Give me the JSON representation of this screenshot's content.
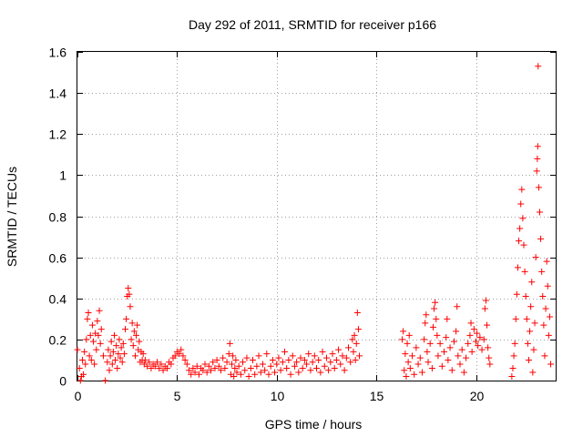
{
  "chart_data": {
    "type": "scatter",
    "title": "Day 292 of 2011, SRMTID for receiver p166",
    "xlabel": "GPS time / hours",
    "ylabel": "SRMTID / TECUs",
    "xlim": [
      0,
      24
    ],
    "ylim": [
      0,
      1.6
    ],
    "xticks": [
      0,
      5,
      10,
      15,
      20
    ],
    "xtick_labels": [
      "0",
      "5",
      "10",
      "15",
      "20"
    ],
    "yticks": [
      0,
      0.2,
      0.4,
      0.6,
      0.8,
      1,
      1.2,
      1.4,
      1.6
    ],
    "ytick_labels": [
      "0",
      "0.2",
      "0.4",
      "0.6",
      "0.8",
      "1",
      "1.2",
      "1.4",
      "1.6"
    ],
    "grid": true,
    "marker": "+",
    "marker_color": "#ff0000",
    "series": [
      {
        "name": "SRMTID",
        "points": [
          [
            0.0,
            0.15
          ],
          [
            0.1,
            0.06
          ],
          [
            0.15,
            0.0
          ],
          [
            0.2,
            0.02
          ],
          [
            0.25,
            0.1
          ],
          [
            0.3,
            0.03
          ],
          [
            0.35,
            0.14
          ],
          [
            0.4,
            0.08
          ],
          [
            0.45,
            0.2
          ],
          [
            0.5,
            0.3
          ],
          [
            0.55,
            0.33
          ],
          [
            0.6,
            0.12
          ],
          [
            0.65,
            0.22
          ],
          [
            0.7,
            0.1
          ],
          [
            0.75,
            0.27
          ],
          [
            0.8,
            0.19
          ],
          [
            0.85,
            0.08
          ],
          [
            0.9,
            0.23
          ],
          [
            0.95,
            0.15
          ],
          [
            1.0,
            0.29
          ],
          [
            1.05,
            0.22
          ],
          [
            1.1,
            0.34
          ],
          [
            1.15,
            0.18
          ],
          [
            1.2,
            0.25
          ],
          [
            1.3,
            0.12
          ],
          [
            1.4,
            0.0
          ],
          [
            1.5,
            0.09
          ],
          [
            1.55,
            0.15
          ],
          [
            1.6,
            0.05
          ],
          [
            1.65,
            0.12
          ],
          [
            1.7,
            0.19
          ],
          [
            1.75,
            0.08
          ],
          [
            1.8,
            0.14
          ],
          [
            1.85,
            0.22
          ],
          [
            1.9,
            0.1
          ],
          [
            1.95,
            0.17
          ],
          [
            2.0,
            0.06
          ],
          [
            2.05,
            0.13
          ],
          [
            2.1,
            0.2
          ],
          [
            2.15,
            0.11
          ],
          [
            2.2,
            0.16
          ],
          [
            2.25,
            0.09
          ],
          [
            2.3,
            0.18
          ],
          [
            2.35,
            0.13
          ],
          [
            2.4,
            0.25
          ],
          [
            2.45,
            0.3
          ],
          [
            2.5,
            0.41
          ],
          [
            2.55,
            0.45
          ],
          [
            2.6,
            0.42
          ],
          [
            2.65,
            0.36
          ],
          [
            2.7,
            0.2
          ],
          [
            2.75,
            0.28
          ],
          [
            2.8,
            0.17
          ],
          [
            2.85,
            0.24
          ],
          [
            2.9,
            0.12
          ],
          [
            2.95,
            0.22
          ],
          [
            3.0,
            0.27
          ],
          [
            3.05,
            0.15
          ],
          [
            3.1,
            0.19
          ],
          [
            3.15,
            0.09
          ],
          [
            3.2,
            0.14
          ],
          [
            3.25,
            0.1
          ],
          [
            3.3,
            0.13
          ],
          [
            3.35,
            0.08
          ],
          [
            3.4,
            0.1
          ],
          [
            3.5,
            0.07
          ],
          [
            3.6,
            0.09
          ],
          [
            3.7,
            0.06
          ],
          [
            3.8,
            0.08
          ],
          [
            3.9,
            0.07
          ],
          [
            4.0,
            0.09
          ],
          [
            4.1,
            0.06
          ],
          [
            4.2,
            0.08
          ],
          [
            4.3,
            0.05
          ],
          [
            4.4,
            0.07
          ],
          [
            4.5,
            0.06
          ],
          [
            4.6,
            0.09
          ],
          [
            4.7,
            0.08
          ],
          [
            4.8,
            0.11
          ],
          [
            4.9,
            0.12
          ],
          [
            5.0,
            0.14
          ],
          [
            5.1,
            0.13
          ],
          [
            5.2,
            0.15
          ],
          [
            5.3,
            0.12
          ],
          [
            5.4,
            0.1
          ],
          [
            5.5,
            0.08
          ],
          [
            5.6,
            0.05
          ],
          [
            5.7,
            0.03
          ],
          [
            5.8,
            0.06
          ],
          [
            5.9,
            0.04
          ],
          [
            6.0,
            0.07
          ],
          [
            6.1,
            0.03
          ],
          [
            6.2,
            0.06
          ],
          [
            6.3,
            0.05
          ],
          [
            6.4,
            0.08
          ],
          [
            6.5,
            0.04
          ],
          [
            6.6,
            0.07
          ],
          [
            6.7,
            0.05
          ],
          [
            6.8,
            0.09
          ],
          [
            6.9,
            0.06
          ],
          [
            7.0,
            0.1
          ],
          [
            7.1,
            0.07
          ],
          [
            7.2,
            0.05
          ],
          [
            7.3,
            0.11
          ],
          [
            7.4,
            0.06
          ],
          [
            7.5,
            0.09
          ],
          [
            7.6,
            0.13
          ],
          [
            7.65,
            0.18
          ],
          [
            7.7,
            0.03
          ],
          [
            7.75,
            0.08
          ],
          [
            7.8,
            0.12
          ],
          [
            7.85,
            0.02
          ],
          [
            7.9,
            0.06
          ],
          [
            7.95,
            0.1
          ],
          [
            8.0,
            0.04
          ],
          [
            8.1,
            0.07
          ],
          [
            8.2,
            0.03
          ],
          [
            8.3,
            0.09
          ],
          [
            8.4,
            0.05
          ],
          [
            8.5,
            0.11
          ],
          [
            8.6,
            0.02
          ],
          [
            8.7,
            0.06
          ],
          [
            8.8,
            0.1
          ],
          [
            8.9,
            0.03
          ],
          [
            9.0,
            0.07
          ],
          [
            9.1,
            0.12
          ],
          [
            9.2,
            0.04
          ],
          [
            9.3,
            0.08
          ],
          [
            9.4,
            0.05
          ],
          [
            9.5,
            0.13
          ],
          [
            9.6,
            0.03
          ],
          [
            9.7,
            0.07
          ],
          [
            9.8,
            0.1
          ],
          [
            9.9,
            0.04
          ],
          [
            10.0,
            0.08
          ],
          [
            10.1,
            0.11
          ],
          [
            10.2,
            0.05
          ],
          [
            10.3,
            0.09
          ],
          [
            10.4,
            0.14
          ],
          [
            10.5,
            0.06
          ],
          [
            10.6,
            0.1
          ],
          [
            10.7,
            0.03
          ],
          [
            10.8,
            0.12
          ],
          [
            10.9,
            0.07
          ],
          [
            11.0,
            0.09
          ],
          [
            11.1,
            0.04
          ],
          [
            11.2,
            0.11
          ],
          [
            11.3,
            0.06
          ],
          [
            11.4,
            0.1
          ],
          [
            11.5,
            0.08
          ],
          [
            11.6,
            0.13
          ],
          [
            11.7,
            0.05
          ],
          [
            11.8,
            0.09
          ],
          [
            11.9,
            0.12
          ],
          [
            12.0,
            0.06
          ],
          [
            12.1,
            0.1
          ],
          [
            12.2,
            0.04
          ],
          [
            12.3,
            0.14
          ],
          [
            12.4,
            0.07
          ],
          [
            12.5,
            0.11
          ],
          [
            12.6,
            0.05
          ],
          [
            12.7,
            0.09
          ],
          [
            12.8,
            0.13
          ],
          [
            12.9,
            0.06
          ],
          [
            13.0,
            0.1
          ],
          [
            13.1,
            0.15
          ],
          [
            13.2,
            0.08
          ],
          [
            13.3,
            0.12
          ],
          [
            13.4,
            0.05
          ],
          [
            13.5,
            0.11
          ],
          [
            13.6,
            0.16
          ],
          [
            13.7,
            0.09
          ],
          [
            13.8,
            0.2
          ],
          [
            13.85,
            0.14
          ],
          [
            13.9,
            0.22
          ],
          [
            13.95,
            0.1
          ],
          [
            14.0,
            0.18
          ],
          [
            14.05,
            0.33
          ],
          [
            14.1,
            0.25
          ],
          [
            14.15,
            0.12
          ],
          [
            16.3,
            0.2
          ],
          [
            16.35,
            0.24
          ],
          [
            16.4,
            0.05
          ],
          [
            16.45,
            0.13
          ],
          [
            16.5,
            0.02
          ],
          [
            16.55,
            0.18
          ],
          [
            16.6,
            0.09
          ],
          [
            16.65,
            0.22
          ],
          [
            16.7,
            0.06
          ],
          [
            16.8,
            0.12
          ],
          [
            16.9,
            0.03
          ],
          [
            17.0,
            0.16
          ],
          [
            17.1,
            0.08
          ],
          [
            17.2,
            0.11
          ],
          [
            17.3,
            0.04
          ],
          [
            17.4,
            0.2
          ],
          [
            17.45,
            0.28
          ],
          [
            17.5,
            0.32
          ],
          [
            17.55,
            0.14
          ],
          [
            17.6,
            0.09
          ],
          [
            17.7,
            0.18
          ],
          [
            17.8,
            0.06
          ],
          [
            17.85,
            0.26
          ],
          [
            17.9,
            0.35
          ],
          [
            17.95,
            0.38
          ],
          [
            18.0,
            0.3
          ],
          [
            18.05,
            0.22
          ],
          [
            18.1,
            0.12
          ],
          [
            18.2,
            0.18
          ],
          [
            18.3,
            0.07
          ],
          [
            18.4,
            0.14
          ],
          [
            18.5,
            0.21
          ],
          [
            18.55,
            0.3
          ],
          [
            18.6,
            0.1
          ],
          [
            18.7,
            0.16
          ],
          [
            18.8,
            0.05
          ],
          [
            18.9,
            0.19
          ],
          [
            19.0,
            0.24
          ],
          [
            19.05,
            0.36
          ],
          [
            19.1,
            0.12
          ],
          [
            19.2,
            0.08
          ],
          [
            19.3,
            0.15
          ],
          [
            19.4,
            0.04
          ],
          [
            19.5,
            0.11
          ],
          [
            19.6,
            0.18
          ],
          [
            19.7,
            0.22
          ],
          [
            19.75,
            0.28
          ],
          [
            19.8,
            0.14
          ],
          [
            19.9,
            0.25
          ],
          [
            20.0,
            0.19
          ],
          [
            20.05,
            0.23
          ],
          [
            20.1,
            0.17
          ],
          [
            20.2,
            0.21
          ],
          [
            20.3,
            0.15
          ],
          [
            20.4,
            0.2
          ],
          [
            20.45,
            0.35
          ],
          [
            20.5,
            0.39
          ],
          [
            20.55,
            0.27
          ],
          [
            20.6,
            0.16
          ],
          [
            20.65,
            0.11
          ],
          [
            20.7,
            0.08
          ],
          [
            21.8,
            0.02
          ],
          [
            21.85,
            0.06
          ],
          [
            21.9,
            0.12
          ],
          [
            21.95,
            0.18
          ],
          [
            22.0,
            0.3
          ],
          [
            22.05,
            0.42
          ],
          [
            22.1,
            0.55
          ],
          [
            22.15,
            0.68
          ],
          [
            22.2,
            0.74
          ],
          [
            22.25,
            0.86
          ],
          [
            22.3,
            0.93
          ],
          [
            22.35,
            0.79
          ],
          [
            22.4,
            0.66
          ],
          [
            22.45,
            0.53
          ],
          [
            22.5,
            0.41
          ],
          [
            22.55,
            0.3
          ],
          [
            22.6,
            0.18
          ],
          [
            22.65,
            0.1
          ],
          [
            22.7,
            0.24
          ],
          [
            22.75,
            0.36
          ],
          [
            22.8,
            0.48
          ],
          [
            22.85,
            0.04
          ],
          [
            22.9,
            0.15
          ],
          [
            22.95,
            0.28
          ],
          [
            23.0,
            0.6
          ],
          [
            23.05,
            1.02
          ],
          [
            23.08,
            1.08
          ],
          [
            23.1,
            1.14
          ],
          [
            23.12,
            1.53
          ],
          [
            23.15,
            0.94
          ],
          [
            23.2,
            0.82
          ],
          [
            23.25,
            0.69
          ],
          [
            23.3,
            0.53
          ],
          [
            23.35,
            0.41
          ],
          [
            23.4,
            0.27
          ],
          [
            23.45,
            0.12
          ],
          [
            23.5,
            0.35
          ],
          [
            23.55,
            0.58
          ],
          [
            23.6,
            0.46
          ],
          [
            23.65,
            0.22
          ],
          [
            23.7,
            0.31
          ],
          [
            23.75,
            0.08
          ]
        ]
      }
    ]
  }
}
